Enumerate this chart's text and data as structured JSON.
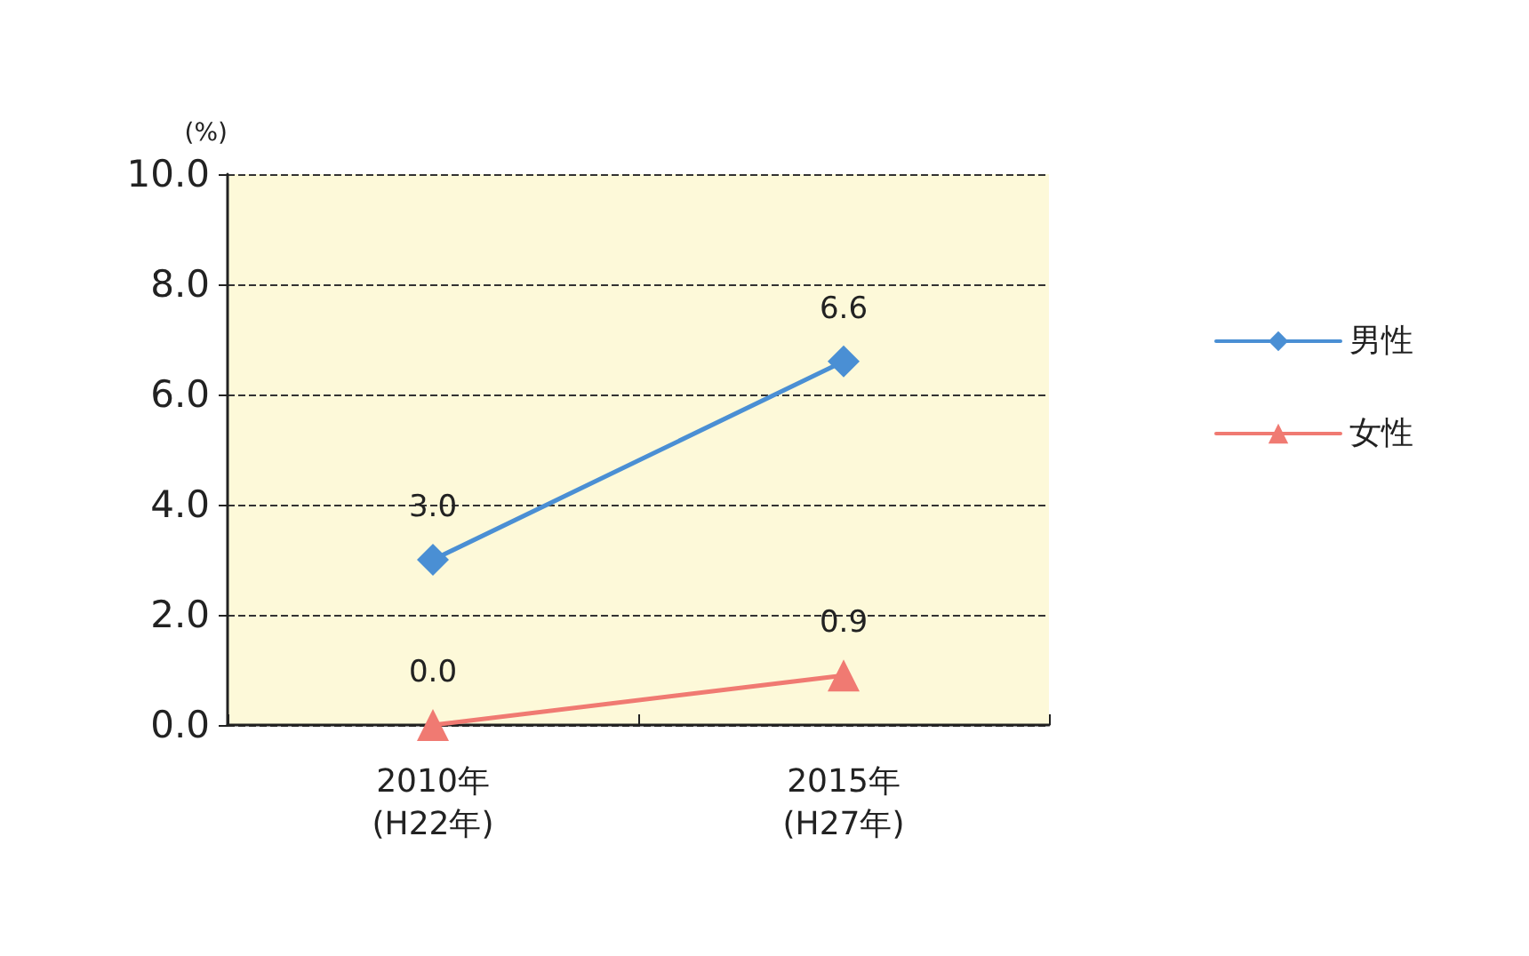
{
  "chart_data": {
    "type": "line",
    "ylabel": "(%)",
    "categories": [
      "2010年\n(H22年)",
      "2015年\n(H27年)"
    ],
    "series": [
      {
        "name": "男性",
        "color": "#4a8fd4",
        "marker": "diamond",
        "values": [
          3.0,
          6.6
        ],
        "value_labels": [
          "3.0",
          "6.6"
        ]
      },
      {
        "name": "女性",
        "color": "#f07a72",
        "marker": "triangle",
        "values": [
          0.0,
          0.9
        ],
        "value_labels": [
          "0.0",
          "0.9"
        ]
      }
    ],
    "ylim": [
      0,
      10
    ],
    "yticks": [
      {
        "value": 0,
        "label": "0.0"
      },
      {
        "value": 2,
        "label": "2.0"
      },
      {
        "value": 4,
        "label": "4.0"
      },
      {
        "value": 6,
        "label": "6.0"
      },
      {
        "value": 8,
        "label": "8.0"
      },
      {
        "value": 10,
        "label": "10.0"
      }
    ],
    "grid": "y",
    "legend": "right",
    "line_style": "solid"
  }
}
